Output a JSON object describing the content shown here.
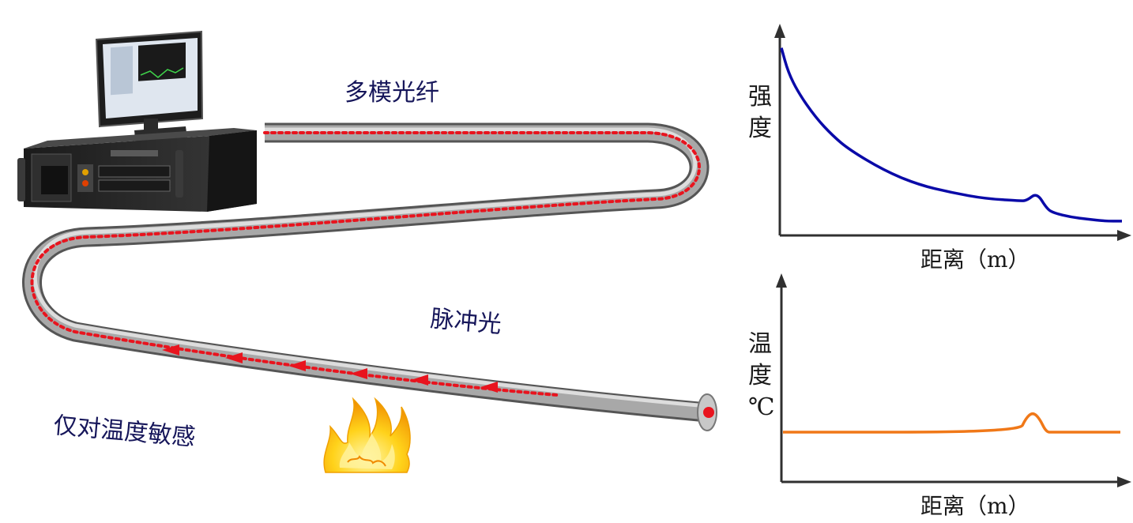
{
  "labels": {
    "fiber": "多模光纤",
    "pulse": "脉冲光",
    "sensitivity": "仅对温度敏感"
  },
  "charts_text": {
    "intensity_ylabel_1": "强",
    "intensity_ylabel_2": "度",
    "intensity_xlabel": "距离（m）",
    "temperature_ylabel_1": "温",
    "temperature_ylabel_2": "度",
    "temperature_ylabel_3": "℃",
    "temperature_xlabel": "距离（m）"
  },
  "colors": {
    "text_blue": "#16165a",
    "intensity_curve": "#0a0aa8",
    "temperature_curve": "#f07818",
    "pulse_dots": "#e8141e",
    "fiber_gray": "#9a9a9a",
    "axes": "#303030"
  },
  "icons": {
    "instrument": "computer-instrument-icon",
    "flame": "fire-icon"
  },
  "chart_data": [
    {
      "type": "line",
      "title": "",
      "xlabel": "距离（m）",
      "ylabel": "强度",
      "series": [
        {
          "x": [
            0,
            0.02,
            0.05,
            0.1,
            0.15,
            0.2,
            0.3,
            0.4,
            0.5,
            0.6,
            0.7,
            0.72,
            0.75,
            0.78,
            0.8,
            0.85,
            0.9,
            0.95,
            1.0
          ],
          "y": [
            0.92,
            0.8,
            0.7,
            0.58,
            0.49,
            0.42,
            0.32,
            0.25,
            0.21,
            0.18,
            0.17,
            0.17,
            0.21,
            0.13,
            0.11,
            0.09,
            0.08,
            0.07,
            0.07
          ]
        }
      ],
      "ylim": [
        0,
        1
      ]
    },
    {
      "type": "line",
      "title": "",
      "xlabel": "距离（m）",
      "ylabel": "温度℃",
      "series": [
        {
          "x": [
            0,
            0.7,
            0.72,
            0.74,
            0.76,
            0.78,
            0.8,
            1.0
          ],
          "y": [
            0.25,
            0.25,
            0.32,
            0.35,
            0.32,
            0.25,
            0.25,
            0.25
          ]
        }
      ],
      "ylim": [
        0,
        1
      ]
    }
  ]
}
